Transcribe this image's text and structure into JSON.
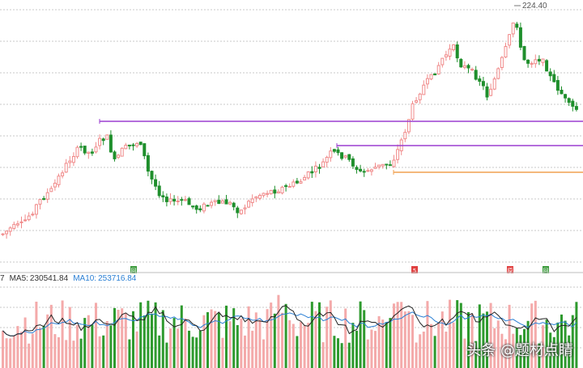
{
  "chart_data": {
    "type": "candlestick",
    "price_max_label": "224.40",
    "horizontal_levels": [
      {
        "name": "purple-level-1",
        "color": "#9b3fd0"
      },
      {
        "name": "purple-level-2",
        "color": "#9b3fd0"
      },
      {
        "name": "orange-level",
        "color": "#f0a050"
      }
    ],
    "event_markers": [
      {
        "text": "回",
        "color": "#3a9a3a"
      },
      {
        "text": "5",
        "color": "#e04040"
      },
      {
        "text": "原",
        "color": "#e04040"
      },
      {
        "text": "回",
        "color": "#3a9a3a"
      }
    ],
    "volume_legend": {
      "prefix": "7",
      "ma5_label": "MA5:",
      "ma5_value": "230541.84",
      "ma10_label": "MA10:",
      "ma10_value": "253716.84"
    },
    "colors": {
      "up": "#f08a8a",
      "down": "#1f8f2c",
      "ma5": "#222222",
      "ma10": "#2a7fd4"
    }
  },
  "watermark": "头条 @题材点睛"
}
